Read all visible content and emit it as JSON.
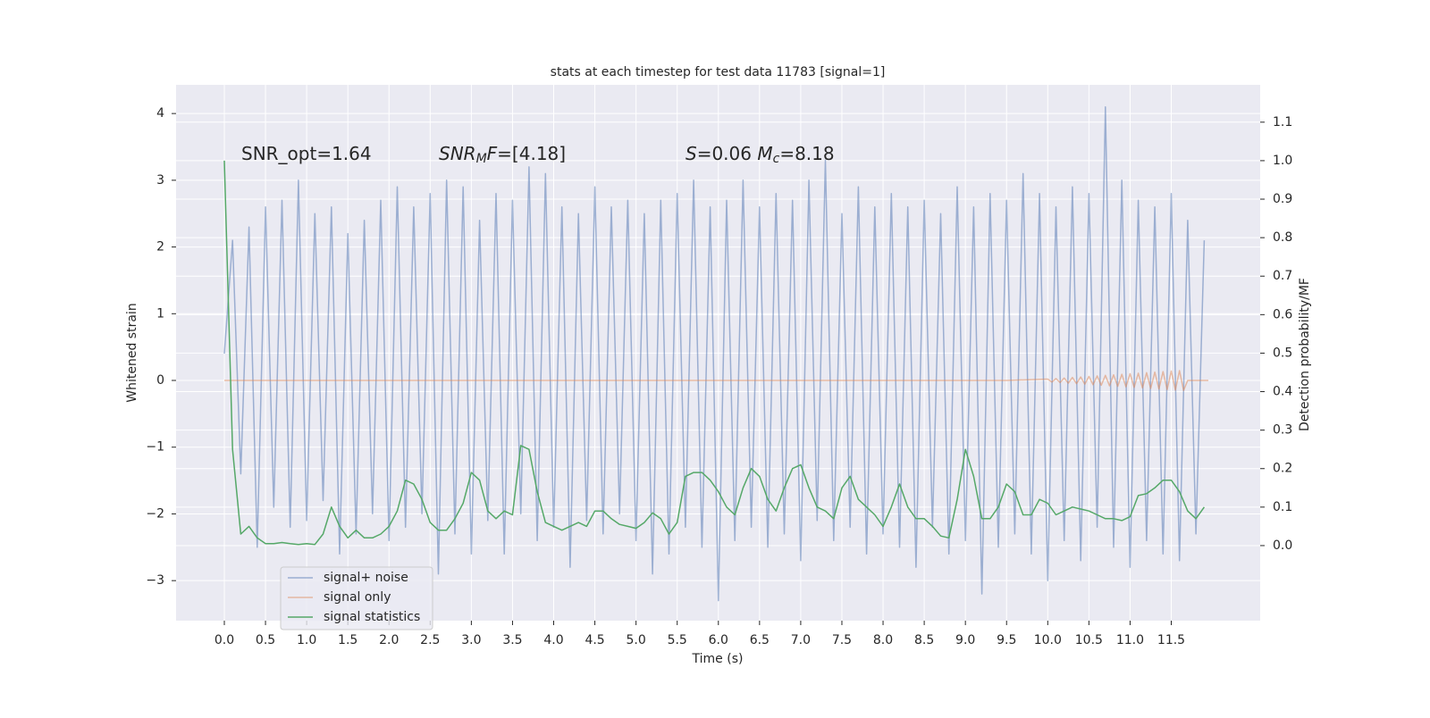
{
  "chart_data": {
    "type": "line",
    "title": "stats at each timestep for test data 11783 [signal=1]",
    "xlabel": "Time (s)",
    "ylabel": "Whitened strain",
    "y2label": "Detection probability/MF",
    "annotations": [
      {
        "parts": [
          {
            "text": "SNR_opt=1.64"
          }
        ]
      },
      {
        "parts": [
          {
            "text": "SNR",
            "italic": true
          },
          {
            "text": "M",
            "italic": true,
            "sub": true
          },
          {
            "text": "F",
            "italic": true
          },
          {
            "text": "=[4.18]"
          }
        ]
      },
      {
        "parts": [
          {
            "text": "S",
            "italic": true
          },
          {
            "text": "=0.06   "
          },
          {
            "text": "M",
            "italic": true
          },
          {
            "text": "c",
            "italic": true,
            "sub": true
          },
          {
            "text": "=8.18"
          }
        ]
      }
    ],
    "x": [
      0.0,
      0.1,
      0.2,
      0.3,
      0.4,
      0.5,
      0.6,
      0.7,
      0.8,
      0.9,
      1.0,
      1.1,
      1.2,
      1.3,
      1.4,
      1.5,
      1.6,
      1.7,
      1.8,
      1.9,
      2.0,
      2.1,
      2.2,
      2.3,
      2.4,
      2.5,
      2.6,
      2.7,
      2.8,
      2.9,
      3.0,
      3.1,
      3.2,
      3.3,
      3.4,
      3.5,
      3.6,
      3.7,
      3.8,
      3.9,
      4.0,
      4.1,
      4.2,
      4.3,
      4.4,
      4.5,
      4.6,
      4.7,
      4.8,
      4.9,
      5.0,
      5.1,
      5.2,
      5.3,
      5.4,
      5.5,
      5.6,
      5.7,
      5.8,
      5.9,
      6.0,
      6.1,
      6.2,
      6.3,
      6.4,
      6.5,
      6.6,
      6.7,
      6.8,
      6.9,
      7.0,
      7.1,
      7.2,
      7.3,
      7.4,
      7.5,
      7.6,
      7.7,
      7.8,
      7.9,
      8.0,
      8.1,
      8.2,
      8.3,
      8.4,
      8.5,
      8.6,
      8.7,
      8.8,
      8.9,
      9.0,
      9.1,
      9.2,
      9.3,
      9.4,
      9.5,
      9.6,
      9.7,
      9.8,
      9.9,
      10.0,
      10.1,
      10.2,
      10.3,
      10.4,
      10.5,
      10.6,
      10.7,
      10.8,
      10.9,
      11.0,
      11.1,
      11.2,
      11.3,
      11.4,
      11.5,
      11.6,
      11.7,
      11.8,
      11.9
    ],
    "series": [
      {
        "name": "signal+ noise",
        "color": "#4c72b0",
        "alpha": 0.5,
        "values": [
          0.4,
          2.1,
          -1.4,
          2.3,
          -2.5,
          2.6,
          -1.9,
          2.7,
          -2.2,
          3.0,
          -2.1,
          2.5,
          -1.8,
          2.6,
          -2.6,
          2.2,
          -2.3,
          2.4,
          -2.0,
          2.7,
          -2.4,
          2.9,
          -2.2,
          2.6,
          -2.0,
          2.8,
          -2.9,
          3.0,
          -2.3,
          2.9,
          -2.6,
          2.4,
          -2.1,
          2.8,
          -2.6,
          2.7,
          -2.0,
          3.2,
          -2.4,
          3.1,
          -2.2,
          2.6,
          -2.8,
          2.5,
          -2.1,
          2.9,
          -2.3,
          2.6,
          -2.0,
          2.7,
          -2.4,
          2.5,
          -2.9,
          2.7,
          -2.6,
          2.8,
          -2.2,
          3.0,
          -2.5,
          2.6,
          -3.3,
          2.7,
          -2.4,
          3.0,
          -2.2,
          2.6,
          -2.5,
          2.8,
          -2.3,
          2.7,
          -2.7,
          3.0,
          -2.1,
          3.3,
          -2.4,
          2.5,
          -2.2,
          2.9,
          -2.6,
          2.6,
          -2.3,
          2.8,
          -2.5,
          2.6,
          -2.8,
          2.7,
          -2.2,
          2.5,
          -2.6,
          2.9,
          -2.4,
          2.6,
          -3.2,
          2.8,
          -2.5,
          2.7,
          -2.3,
          3.1,
          -2.6,
          2.8,
          -3.0,
          2.6,
          -2.4,
          2.9,
          -2.7,
          2.8,
          -2.2,
          4.1,
          -2.5,
          3.0,
          -2.8,
          2.7,
          -2.4,
          2.6,
          -2.6,
          2.8,
          -2.7,
          2.4,
          -2.3,
          2.1
        ]
      },
      {
        "name": "signal only",
        "color": "#dd8452",
        "alpha": 0.5,
        "x": [
          0,
          9.5,
          10.0,
          10.05,
          10.1,
          10.15,
          10.2,
          10.25,
          10.3,
          10.35,
          10.4,
          10.45,
          10.5,
          10.55,
          10.6,
          10.65,
          10.7,
          10.75,
          10.8,
          10.85,
          10.9,
          10.95,
          11.0,
          11.05,
          11.1,
          11.15,
          11.2,
          11.25,
          11.3,
          11.35,
          11.4,
          11.45,
          11.5,
          11.55,
          11.6,
          11.65,
          11.7,
          11.95
        ],
        "values": [
          0,
          0,
          0.02,
          -0.024,
          0.028,
          -0.032,
          0.036,
          -0.04,
          0.044,
          -0.048,
          0.052,
          -0.056,
          0.06,
          -0.064,
          0.068,
          -0.072,
          0.076,
          -0.08,
          0.084,
          -0.088,
          0.092,
          -0.096,
          0.1,
          -0.104,
          0.108,
          -0.112,
          0.116,
          -0.12,
          0.124,
          -0.128,
          0.132,
          -0.136,
          0.14,
          -0.144,
          0.148,
          -0.15,
          0,
          0
        ]
      },
      {
        "name": "signal statistics",
        "color": "#55a868",
        "alpha": 1,
        "axis": "y2",
        "values": [
          1.0,
          0.25,
          0.03,
          0.05,
          0.02,
          0.005,
          0.005,
          0.008,
          0.005,
          0.003,
          0.005,
          0.003,
          0.03,
          0.1,
          0.05,
          0.02,
          0.04,
          0.02,
          0.02,
          0.03,
          0.05,
          0.09,
          0.17,
          0.16,
          0.12,
          0.06,
          0.04,
          0.04,
          0.07,
          0.11,
          0.19,
          0.17,
          0.09,
          0.07,
          0.09,
          0.08,
          0.26,
          0.25,
          0.14,
          0.06,
          0.05,
          0.04,
          0.05,
          0.06,
          0.05,
          0.09,
          0.09,
          0.07,
          0.055,
          0.05,
          0.045,
          0.06,
          0.085,
          0.07,
          0.03,
          0.06,
          0.18,
          0.19,
          0.19,
          0.17,
          0.14,
          0.1,
          0.08,
          0.15,
          0.2,
          0.18,
          0.12,
          0.09,
          0.15,
          0.2,
          0.21,
          0.15,
          0.1,
          0.09,
          0.07,
          0.15,
          0.18,
          0.12,
          0.1,
          0.08,
          0.05,
          0.1,
          0.16,
          0.1,
          0.07,
          0.07,
          0.05,
          0.025,
          0.02,
          0.12,
          0.25,
          0.18,
          0.07,
          0.07,
          0.1,
          0.16,
          0.14,
          0.08,
          0.08,
          0.12,
          0.11,
          0.08,
          0.09,
          0.1,
          0.095,
          0.09,
          0.08,
          0.07,
          0.07,
          0.065,
          0.075,
          0.13,
          0.135,
          0.15,
          0.17,
          0.17,
          0.14,
          0.09,
          0.07,
          0.1
        ]
      }
    ],
    "xlim": [
      -0.586,
      12.58
    ],
    "xticks": [
      {
        "value": 0,
        "label": "0.0"
      },
      0.5,
      {
        "value": 1,
        "label": "1.0"
      },
      1.5,
      {
        "value": 2,
        "label": "2.0"
      },
      2.5,
      {
        "value": 3,
        "label": "3.0"
      },
      3.5,
      {
        "value": 4,
        "label": "4.0"
      },
      4.5,
      {
        "value": 5,
        "label": "5.0"
      },
      5.5,
      {
        "value": 6,
        "label": "6.0"
      },
      6.5,
      {
        "value": 7,
        "label": "7.0"
      },
      7.5,
      {
        "value": 8,
        "label": "8.0"
      },
      8.5,
      {
        "value": 9,
        "label": "9.0"
      },
      9.5,
      {
        "value": 10,
        "label": "10.0"
      },
      10.5,
      {
        "value": 11,
        "label": "11.0"
      },
      11.5
    ],
    "ylim": [
      -3.6,
      4.43
    ],
    "yticks": [
      {
        "value": -3,
        "label": "−3"
      },
      {
        "value": -2,
        "label": "−2"
      },
      {
        "value": -1,
        "label": "−1"
      },
      0,
      1,
      2,
      3,
      4
    ],
    "y2lim": [
      -0.195,
      1.197
    ],
    "y2ticks": [
      {
        "value": 0,
        "label": "0.0"
      },
      0.1,
      0.2,
      0.3,
      0.4,
      0.5,
      0.6,
      0.7,
      0.8,
      0.9,
      {
        "value": 1,
        "label": "1.0"
      },
      1.1
    ],
    "grid": true,
    "legend": "lower left"
  }
}
